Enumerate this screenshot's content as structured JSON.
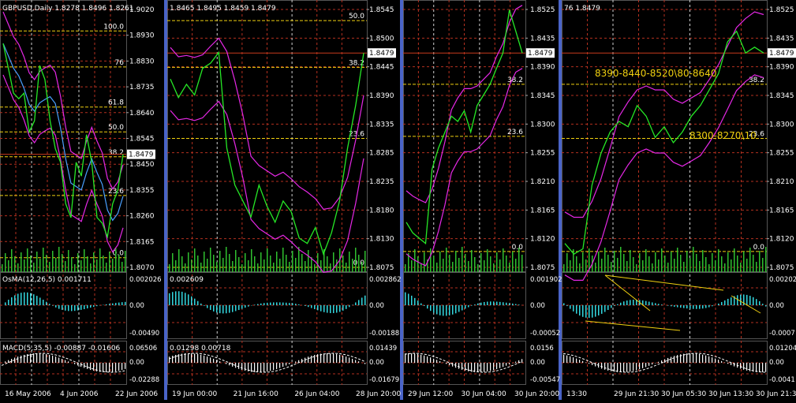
{
  "colors": {
    "background": "#000000",
    "grid": "#b5301f",
    "dashed_grid": "#d0d0d0",
    "price": "#26e826",
    "envelope": "#e628e6",
    "ma": "#4aa0ff",
    "fib": "#f0d010",
    "volume": "#2fbf2f",
    "osma": "#33d8e0",
    "macd": "#ffffff",
    "separator": "#4a64c8",
    "text": "#ffffff",
    "price_marker": "#c83a1c",
    "annotation": "#f0d010"
  },
  "panels": [
    {
      "id": "daily",
      "header": "GBPUSD,Daily  1.8278 1.8496 1.8261",
      "price_ticks": [
        "1.9020",
        "1.8930",
        "1.8830",
        "1.8735",
        "1.8640",
        "1.8545",
        "1.8450",
        "1.8355",
        "1.8260",
        "1.8165",
        "1.8070"
      ],
      "current_price": "1.8479",
      "fib_levels": [
        {
          "label": "100.0",
          "value": 1.8925
        },
        {
          "label": "76",
          "value": 1.8795
        },
        {
          "label": "61.8",
          "value": 1.865
        },
        {
          "label": "50.0",
          "value": 1.856
        },
        {
          "label": "38.2",
          "value": 1.847
        },
        {
          "label": "23.6",
          "value": 1.833
        },
        {
          "label": "0.0",
          "value": 1.8105
        }
      ],
      "osma_label": "OsMA(12,26,5) 0.001711",
      "osma_ticks": [
        "0.002026",
        "0.00",
        "-0.00490"
      ],
      "macd_label": "MACD(5,35,5) -0.00887 -0.01606",
      "macd_ticks": [
        "0.06506",
        "0.00",
        "-0.02288"
      ],
      "time_labels": [
        "16 May 2006",
        "4 Jun 2006",
        "22 Jun 2006"
      ]
    },
    {
      "id": "h4",
      "header": "1.8465 1.8495 1.8459 1.8479",
      "price_ticks": [
        "1.8545",
        "1.8500",
        "1.8445",
        "1.8390",
        "1.8335",
        "1.8285",
        "1.8235",
        "1.8180",
        "1.8130",
        "1.8075"
      ],
      "current_price": "1.8479",
      "fib_levels": [
        {
          "label": "50.0",
          "value": 1.854
        },
        {
          "label": "38.2",
          "value": 1.8452
        },
        {
          "label": "23.6",
          "value": 1.8318
        },
        {
          "label": "0.0",
          "value": 1.8075
        }
      ],
      "osma_label": "0.002609",
      "osma_ticks": [
        "0.002862",
        "0.00",
        "-0.00188"
      ],
      "macd_label": "0.01298 0.00718",
      "macd_ticks": [
        "0.01439",
        "0.00",
        "-0.01679"
      ],
      "time_labels": [
        "19 Jun 00:00",
        "21 Jun 16:00",
        "26 Jun 04:00",
        "28 Jun 20:00"
      ]
    },
    {
      "id": "h1",
      "header": "",
      "price_ticks": [
        "1.8525",
        "1.8435",
        "1.8390",
        "1.8345",
        "1.8300",
        "1.8255",
        "1.8210",
        "1.8165",
        "1.8120",
        "1.8075"
      ],
      "current_price": "1.8479",
      "fib_levels": [
        {
          "label": "38.2",
          "value": 1.842
        },
        {
          "label": "23.6",
          "value": 1.8322
        },
        {
          "label": "0.0",
          "value": 1.8105
        }
      ],
      "osma_label": "",
      "osma_ticks": [
        "0.001902",
        "0.00",
        "-0.00052"
      ],
      "macd_label": "",
      "macd_ticks": [
        "0.0156",
        "0.00",
        "-0.00547"
      ],
      "time_labels": [
        "29 Jun 12:00",
        "30 Jun 04:00",
        "30 Jun 20:00"
      ]
    },
    {
      "id": "m15",
      "header": "76 1.8479",
      "price_ticks": [
        "1.8525",
        "1.8435",
        "1.8390",
        "1.8345",
        "1.8300",
        "1.8255",
        "1.8210",
        "1.8165",
        "1.8120",
        "1.8075"
      ],
      "current_price": "1.8479",
      "fib_levels": [
        {
          "label": "38.2",
          "value": 1.842
        },
        {
          "label": "23.6",
          "value": 1.8318
        },
        {
          "label": "0.0",
          "value": 1.8105
        }
      ],
      "annotations": [
        "8390-8440-8520\\80-8640",
        "8300-8270\\10"
      ],
      "osma_label": "",
      "osma_ticks": [
        "0.00202",
        "0.00",
        "-0.0007"
      ],
      "macd_label": "",
      "macd_ticks": [
        "0.01204",
        "0.00",
        "-0.0041"
      ],
      "time_labels": [
        "13:30",
        "29 Jun 21:30",
        "30 Jun 05:30",
        "30 Jun 13:30",
        "30 Jun 21:30"
      ]
    }
  ],
  "chart_data": [
    {
      "type": "line",
      "title": "GBPUSD,Daily",
      "series": [
        {
          "name": "price",
          "values": [
            1.888,
            1.879,
            1.87,
            1.868,
            1.87,
            1.856,
            1.86,
            1.88,
            1.875,
            1.86,
            1.85,
            1.845,
            1.83,
            1.825,
            1.845,
            1.84,
            1.855,
            1.845,
            1.825,
            1.823,
            1.818,
            1.83,
            1.835,
            1.8479
          ]
        }
      ],
      "ylim": [
        1.807,
        1.902
      ]
    },
    {
      "type": "line",
      "title": "",
      "series": [
        {
          "name": "price",
          "values": [
            1.843,
            1.8395,
            1.842,
            1.84,
            1.845,
            1.846,
            1.848,
            1.83,
            1.823,
            1.82,
            1.817,
            1.823,
            1.819,
            1.816,
            1.82,
            1.818,
            1.813,
            1.812,
            1.815,
            1.81,
            1.814,
            1.82,
            1.83,
            1.838,
            1.8479
          ]
        }
      ],
      "ylim": [
        1.8075,
        1.857
      ]
    },
    {
      "type": "line",
      "title": "",
      "series": [
        {
          "name": "price",
          "values": [
            1.816,
            1.814,
            1.813,
            1.812,
            1.826,
            1.83,
            1.833,
            1.836,
            1.835,
            1.837,
            1.833,
            1.838,
            1.84,
            1.842,
            1.845,
            1.8479,
            1.856,
            1.852,
            1.8479
          ]
        }
      ],
      "ylim": [
        1.8075,
        1.857
      ]
    },
    {
      "type": "line",
      "title": "",
      "series": [
        {
          "name": "price",
          "values": [
            1.812,
            1.81,
            1.811,
            1.823,
            1.829,
            1.833,
            1.835,
            1.834,
            1.838,
            1.836,
            1.832,
            1.834,
            1.831,
            1.833,
            1.836,
            1.838,
            1.841,
            1.844,
            1.85,
            1.852,
            1.8479,
            1.849,
            1.8479
          ]
        }
      ],
      "ylim": [
        1.8075,
        1.857
      ]
    }
  ]
}
